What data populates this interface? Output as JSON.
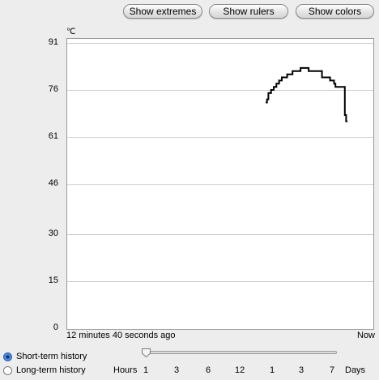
{
  "toolbar": {
    "show_extremes": "Show extremes",
    "show_rulers": "Show rulers",
    "show_colors": "Show colors"
  },
  "chart": {
    "unit": "℃",
    "y_ticks": [
      "91",
      "76",
      "61",
      "46",
      "30",
      "15",
      "0"
    ],
    "x_start_label": "12 minutes 40 seconds ago",
    "x_end_label": "Now"
  },
  "chart_data": {
    "type": "line",
    "ylim": [
      0,
      91
    ],
    "y_ticks": [
      91,
      76,
      61,
      46,
      30,
      15,
      0
    ],
    "x_start": "12 minutes 40 seconds ago",
    "x_end": "Now",
    "series": [
      {
        "values": [
          [
            0.74,
            72
          ],
          [
            0.745,
            73
          ],
          [
            0.75,
            75
          ],
          [
            0.76,
            76
          ],
          [
            0.77,
            77
          ],
          [
            0.78,
            78
          ],
          [
            0.79,
            79
          ],
          [
            0.8,
            80
          ],
          [
            0.82,
            81
          ],
          [
            0.84,
            82
          ],
          [
            0.86,
            82
          ],
          [
            0.87,
            83
          ],
          [
            0.89,
            83
          ],
          [
            0.9,
            82
          ],
          [
            0.92,
            82
          ],
          [
            0.94,
            82
          ],
          [
            0.95,
            80
          ],
          [
            0.97,
            80
          ],
          [
            0.98,
            79
          ],
          [
            0.99,
            79
          ],
          [
            0.995,
            78
          ],
          [
            1.0,
            77
          ],
          [
            1.01,
            77
          ],
          [
            1.02,
            77
          ],
          [
            1.03,
            77
          ],
          [
            1.035,
            68
          ],
          [
            1.04,
            66
          ],
          [
            1.045,
            66
          ]
        ]
      }
    ],
    "grid": true,
    "line_color": "#000000"
  },
  "history": {
    "short_term": "Short-term history",
    "long_term": "Long-term history",
    "selected": "short_term"
  },
  "scale": {
    "hours_label": "Hours",
    "hour_values": [
      "1",
      "3",
      "6",
      "12",
      "1",
      "3",
      "7"
    ],
    "days_label": "Days",
    "slider_position": 0
  }
}
